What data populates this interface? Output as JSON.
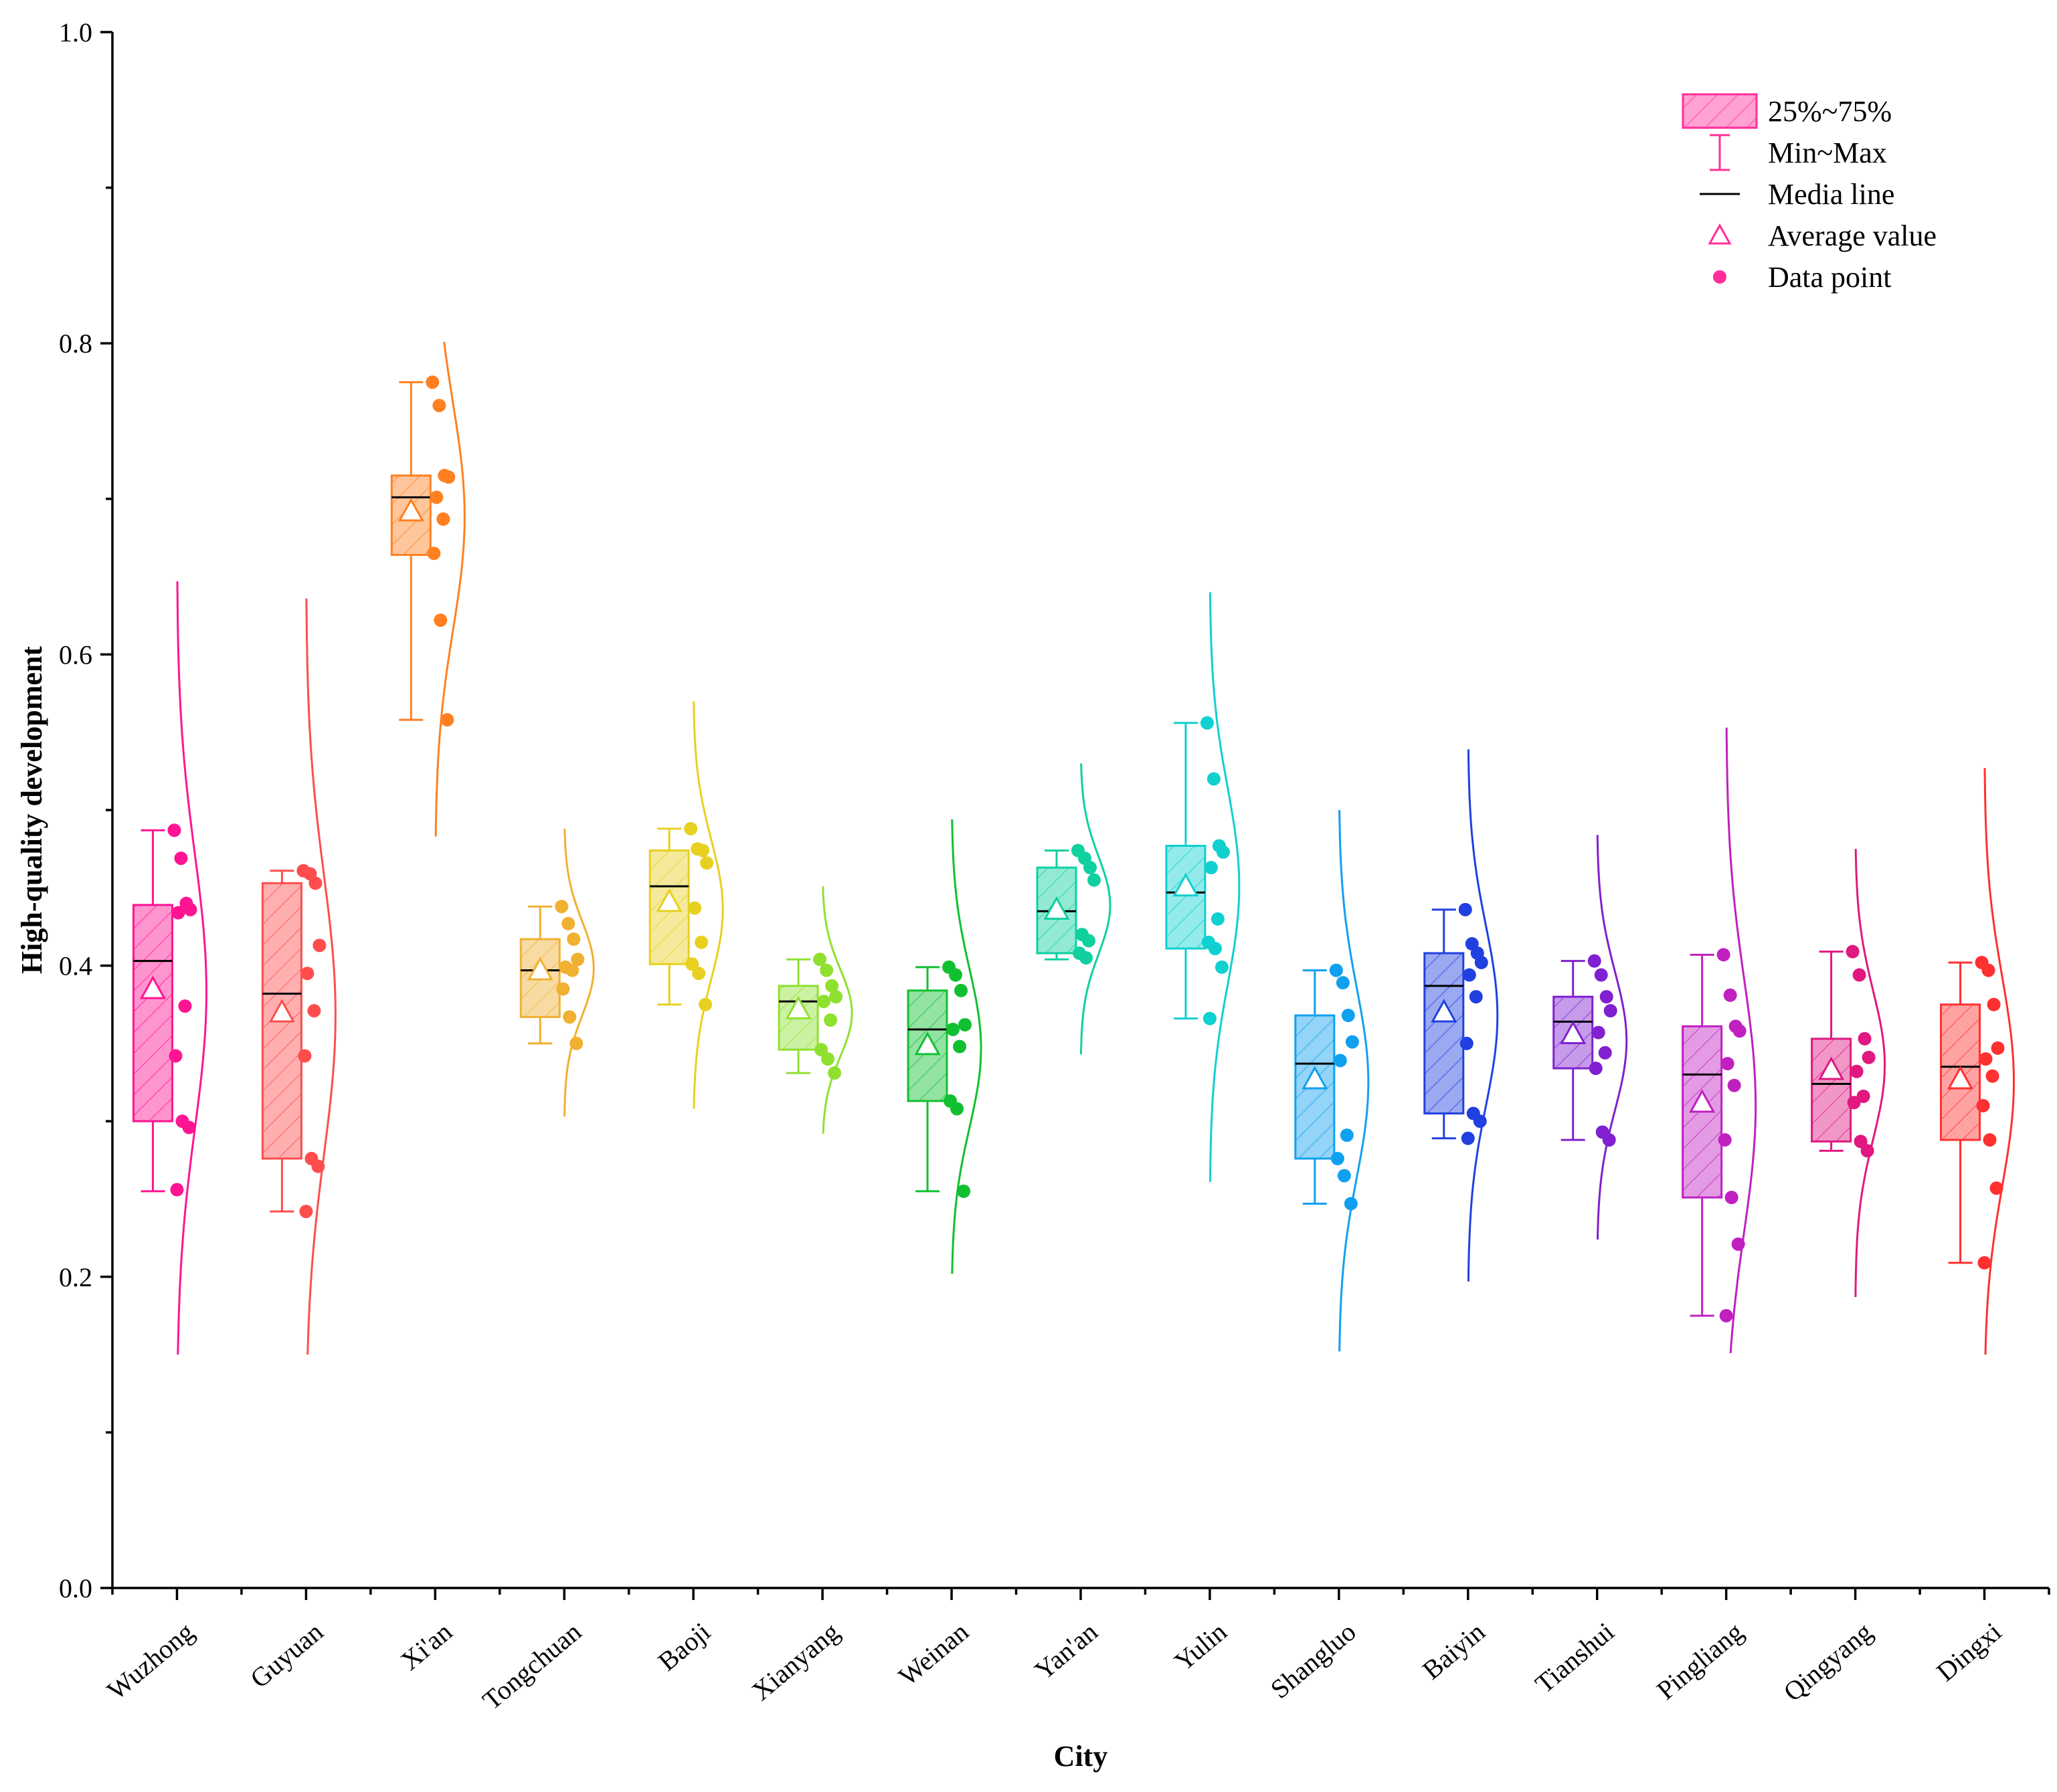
{
  "chart_data": {
    "type": "box",
    "title": "",
    "xlabel": "City",
    "ylabel": "High-quality development",
    "ylim": [
      0.0,
      1.0
    ],
    "yticks": [
      "0.0",
      "0.2",
      "0.4",
      "0.6",
      "0.8",
      "1.0"
    ],
    "grid": false,
    "legend_position": "top-right",
    "legend": [
      {
        "key": "box",
        "label": "25%~75%"
      },
      {
        "key": "whisker",
        "label": "Min~Max"
      },
      {
        "key": "median",
        "label": "Media line"
      },
      {
        "key": "mean",
        "label": "Average value"
      },
      {
        "key": "points",
        "label": "Data point"
      }
    ],
    "legend_color": "#ff2d9a",
    "categories": [
      "Wuzhong",
      "Guyuan",
      "Xi'an",
      "Tongchuan",
      "Baoji",
      "Xianyang",
      "Weinan",
      "Yan'an",
      "Yulin",
      "Shangluo",
      "Baiyin",
      "Tianshui",
      "Pingliang",
      "Qingyang",
      "Dingxi"
    ],
    "series": [
      {
        "category": "Wuzhong",
        "color": "#ff1493",
        "min": 0.255,
        "q1": 0.3,
        "median": 0.403,
        "q3": 0.439,
        "max": 0.487,
        "mean": 0.385,
        "points": [
          0.487,
          0.469,
          0.44,
          0.436,
          0.434,
          0.374,
          0.342,
          0.3,
          0.296,
          0.256
        ],
        "curve": [
          0.15,
          0.647
        ]
      },
      {
        "category": "Guyuan",
        "color": "#ff4d4d",
        "min": 0.242,
        "q1": 0.276,
        "median": 0.382,
        "q3": 0.453,
        "max": 0.461,
        "mean": 0.37,
        "points": [
          0.461,
          0.459,
          0.453,
          0.413,
          0.395,
          0.371,
          0.342,
          0.276,
          0.271,
          0.242
        ],
        "curve": [
          0.15,
          0.636
        ]
      },
      {
        "category": "Xi'an",
        "color": "#ff8020",
        "min": 0.558,
        "q1": 0.664,
        "median": 0.701,
        "q3": 0.715,
        "max": 0.775,
        "mean": 0.692,
        "points": [
          0.775,
          0.76,
          0.715,
          0.714,
          0.701,
          0.687,
          0.665,
          0.622,
          0.558
        ],
        "curve": [
          0.483,
          0.801
        ]
      },
      {
        "category": "Tongchuan",
        "color": "#f0b030",
        "min": 0.35,
        "q1": 0.367,
        "median": 0.397,
        "q3": 0.417,
        "max": 0.438,
        "mean": 0.397,
        "points": [
          0.438,
          0.427,
          0.417,
          0.404,
          0.399,
          0.397,
          0.385,
          0.367,
          0.35
        ],
        "curve": [
          0.303,
          0.488
        ]
      },
      {
        "category": "Baoji",
        "color": "#e8d020",
        "min": 0.375,
        "q1": 0.401,
        "median": 0.451,
        "q3": 0.474,
        "max": 0.488,
        "mean": 0.441,
        "points": [
          0.488,
          0.475,
          0.474,
          0.466,
          0.437,
          0.415,
          0.401,
          0.395,
          0.375
        ],
        "curve": [
          0.308,
          0.57
        ]
      },
      {
        "category": "Xianyang",
        "color": "#90e030",
        "min": 0.331,
        "q1": 0.346,
        "median": 0.377,
        "q3": 0.387,
        "max": 0.404,
        "mean": 0.372,
        "points": [
          0.404,
          0.397,
          0.387,
          0.38,
          0.377,
          0.365,
          0.346,
          0.34,
          0.331
        ],
        "curve": [
          0.292,
          0.451
        ]
      },
      {
        "category": "Weinan",
        "color": "#10c030",
        "min": 0.255,
        "q1": 0.313,
        "median": 0.359,
        "q3": 0.384,
        "max": 0.399,
        "mean": 0.349,
        "points": [
          0.399,
          0.394,
          0.384,
          0.362,
          0.359,
          0.348,
          0.313,
          0.308,
          0.255
        ],
        "curve": [
          0.202,
          0.494
        ]
      },
      {
        "category": "Yan'an",
        "color": "#10d0a0",
        "min": 0.404,
        "q1": 0.408,
        "median": 0.435,
        "q3": 0.463,
        "max": 0.474,
        "mean": 0.436,
        "points": [
          0.474,
          0.469,
          0.463,
          0.455,
          0.42,
          0.416,
          0.408,
          0.405
        ],
        "curve": [
          0.343,
          0.53
        ]
      },
      {
        "category": "Yulin",
        "color": "#10d0d0",
        "min": 0.366,
        "q1": 0.411,
        "median": 0.447,
        "q3": 0.477,
        "max": 0.556,
        "mean": 0.451,
        "points": [
          0.556,
          0.52,
          0.477,
          0.473,
          0.463,
          0.43,
          0.415,
          0.411,
          0.399,
          0.366
        ],
        "curve": [
          0.261,
          0.64
        ]
      },
      {
        "category": "Shangluo",
        "color": "#10a0f0",
        "min": 0.247,
        "q1": 0.276,
        "median": 0.337,
        "q3": 0.368,
        "max": 0.397,
        "mean": 0.327,
        "points": [
          0.397,
          0.389,
          0.368,
          0.351,
          0.339,
          0.291,
          0.276,
          0.265,
          0.247
        ],
        "curve": [
          0.152,
          0.5
        ]
      },
      {
        "category": "Baiyin",
        "color": "#2040e0",
        "min": 0.289,
        "q1": 0.305,
        "median": 0.387,
        "q3": 0.408,
        "max": 0.436,
        "mean": 0.37,
        "points": [
          0.436,
          0.414,
          0.408,
          0.402,
          0.394,
          0.38,
          0.35,
          0.305,
          0.3,
          0.289
        ],
        "curve": [
          0.197,
          0.539
        ]
      },
      {
        "category": "Tianshui",
        "color": "#8020d0",
        "min": 0.288,
        "q1": 0.334,
        "median": 0.364,
        "q3": 0.38,
        "max": 0.403,
        "mean": 0.356,
        "points": [
          0.403,
          0.394,
          0.38,
          0.371,
          0.357,
          0.344,
          0.334,
          0.293,
          0.288
        ],
        "curve": [
          0.224,
          0.484
        ]
      },
      {
        "category": "Pingliang",
        "color": "#c020c0",
        "min": 0.175,
        "q1": 0.251,
        "median": 0.33,
        "q3": 0.361,
        "max": 0.407,
        "mean": 0.312,
        "points": [
          0.407,
          0.381,
          0.361,
          0.358,
          0.337,
          0.323,
          0.288,
          0.251,
          0.221,
          0.175
        ],
        "curve": [
          0.151,
          0.553
        ]
      },
      {
        "category": "Qingyang",
        "color": "#e01880",
        "min": 0.281,
        "q1": 0.287,
        "median": 0.324,
        "q3": 0.353,
        "max": 0.409,
        "mean": 0.333,
        "points": [
          0.409,
          0.394,
          0.353,
          0.341,
          0.332,
          0.316,
          0.312,
          0.287,
          0.281
        ],
        "curve": [
          0.187,
          0.475
        ]
      },
      {
        "category": "Dingxi",
        "color": "#ff3030",
        "min": 0.209,
        "q1": 0.288,
        "median": 0.335,
        "q3": 0.375,
        "max": 0.402,
        "mean": 0.327,
        "points": [
          0.402,
          0.397,
          0.375,
          0.347,
          0.34,
          0.329,
          0.31,
          0.288,
          0.257,
          0.209
        ],
        "curve": [
          0.15,
          0.527
        ]
      }
    ]
  }
}
